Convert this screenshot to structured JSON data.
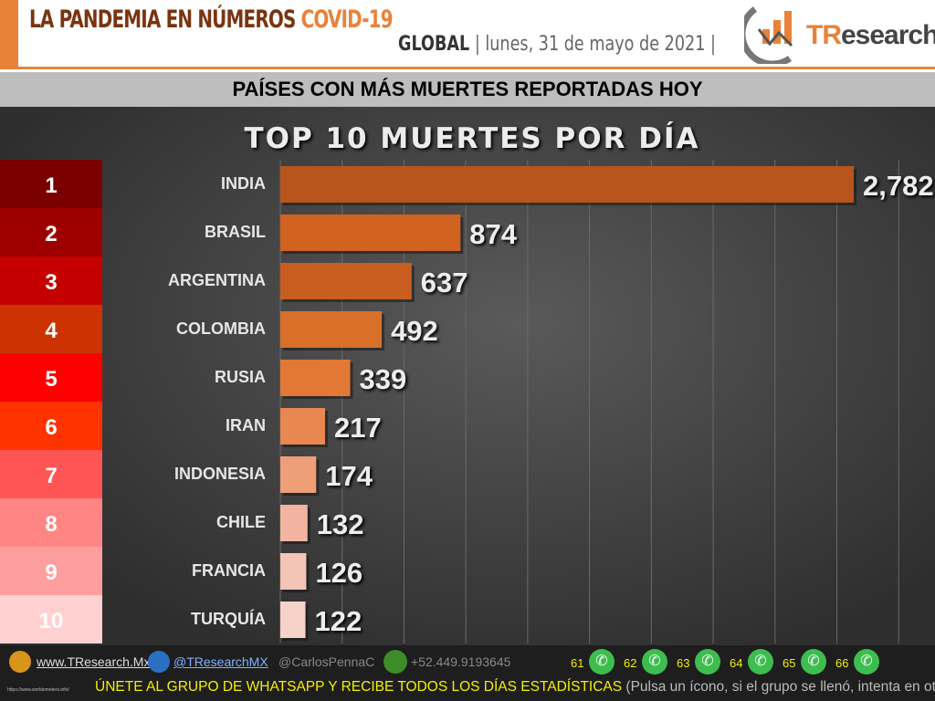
{
  "header": {
    "title_main": "LA PANDEMIA EN NÚMEROS ",
    "title_accent": "COVID-19",
    "scope": "GLOBAL",
    "date": " | lunes, 31 de mayo de 2021 |",
    "logo_text_accent": "TR",
    "logo_text": "esearch"
  },
  "band_title": "PAÍSES CON MÁS MUERTES REPORTADAS HOY",
  "chart_data": {
    "type": "bar",
    "orientation": "horizontal",
    "title": "TOP 10 MUERTES POR DÍA",
    "ranks": [
      "1",
      "2",
      "3",
      "4",
      "5",
      "6",
      "7",
      "8",
      "9",
      "10"
    ],
    "categories": [
      "INDIA",
      "BRASIL",
      "ARGENTINA",
      "COLOMBIA",
      "RUSIA",
      "IRAN",
      "INDONESIA",
      "CHILE",
      "FRANCIA",
      "TURQUÍA"
    ],
    "values": [
      2782,
      874,
      637,
      492,
      339,
      217,
      174,
      132,
      126,
      122
    ],
    "labels": [
      "2,782",
      "874",
      "637",
      "492",
      "339",
      "217",
      "174",
      "132",
      "126",
      "122"
    ],
    "xlim": [
      0,
      3000
    ],
    "grid": true,
    "rank_colors": [
      "#7b0000",
      "#9e0000",
      "#c40000",
      "#cc3300",
      "#ff0000",
      "#ff3300",
      "#ff5555",
      "#ff8585",
      "#ff9e9e",
      "#ffd0d0"
    ],
    "bar_colors": [
      "#b8551c",
      "#d2621f",
      "#c85e20",
      "#d8702a",
      "#e27834",
      "#e88750",
      "#ee9f78",
      "#f2b4a0",
      "#f4c4b6",
      "#f6d2c8"
    ]
  },
  "footer": {
    "web": "www.TResearch.Mx",
    "twitter": "@TResearchMX",
    "user": "@CarlosPennaC",
    "phone": "+52.449.9193645",
    "groups": [
      "61",
      "62",
      "63",
      "64",
      "65",
      "66"
    ],
    "source": "https://www.worldometers.info/",
    "cta": "ÚNETE AL GRUPO DE WHATSAPP Y RECIBE TODOS LOS DÍAS ESTADÍSTICAS",
    "cta_note": "(Pulsa un ícono, si el grupo se llenó, intenta en otro)"
  }
}
